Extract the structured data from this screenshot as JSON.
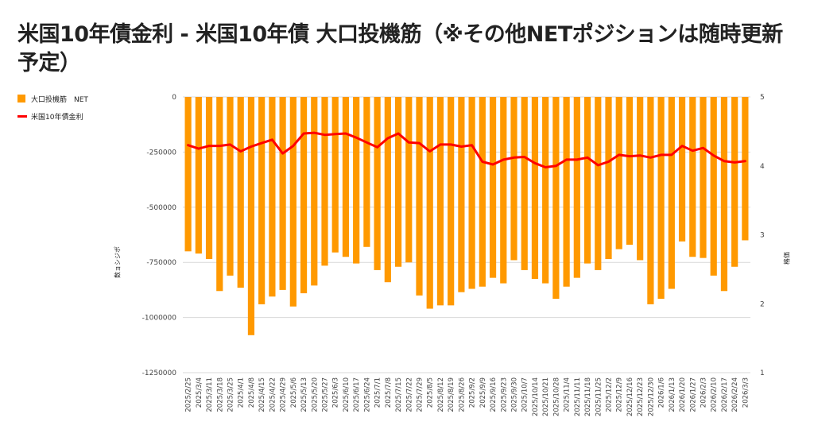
{
  "chart_data": {
    "type": "bar",
    "title": "米国10年債金利 - 米国10年債 大口投機筋（※その他NETポジションは随時更新予定）",
    "ylabel_left": "数ョシジポ",
    "ylabel_right": "格価",
    "legend_position": "left",
    "ylim_left": [
      -1250000,
      0
    ],
    "yticks_left": [
      0,
      -250000,
      -500000,
      -750000,
      -1000000,
      -1250000
    ],
    "ylim_right": [
      1,
      5
    ],
    "yticks_right": [
      5,
      4,
      3,
      2,
      1
    ],
    "colors": {
      "bar": "#ff9900",
      "line": "#ff0000",
      "grid": "#d9d9d9",
      "text": "#444444"
    },
    "categories": [
      "2025/2/25",
      "2025/3/4",
      "2025/3/11",
      "2025/3/18",
      "2025/3/25",
      "2025/4/1",
      "2025/4/8",
      "2025/4/15",
      "2025/4/22",
      "2025/4/29",
      "2025/5/6",
      "2025/5/13",
      "2025/5/20",
      "2025/5/27",
      "2025/6/3",
      "2025/6/10",
      "2025/6/17",
      "2025/6/24",
      "2025/7/1",
      "2025/7/8",
      "2025/7/15",
      "2025/7/22",
      "2025/7/29",
      "2025/8/5",
      "2025/8/12",
      "2025/8/19",
      "2025/8/26",
      "2025/9/2",
      "2025/9/9",
      "2025/9/16",
      "2025/9/23",
      "2025/9/30",
      "2025/10/7",
      "2025/10/14",
      "2025/10/21",
      "2025/10/28",
      "2025/11/4",
      "2025/11/11",
      "2025/11/18",
      "2025/11/25",
      "2025/12/2",
      "2025/12/9",
      "2025/12/16",
      "2025/12/23",
      "2025/12/30",
      "2026/1/6",
      "2026/1/13",
      "2026/1/20",
      "2026/1/27",
      "2026/2/3",
      "2026/2/10",
      "2026/2/17",
      "2026/2/24",
      "2026/3/3"
    ],
    "series": [
      {
        "name": "大口投機筋　NET",
        "axis": "left",
        "type": "bar",
        "values": [
          -700000,
          -710000,
          -735000,
          -880000,
          -810000,
          -865000,
          -1080000,
          -940000,
          -905000,
          -875000,
          -950000,
          -890000,
          -855000,
          -765000,
          -705000,
          -725000,
          -755000,
          -680000,
          -785000,
          -840000,
          -770000,
          -750000,
          -900000,
          -960000,
          -945000,
          -945000,
          -885000,
          -870000,
          -860000,
          -820000,
          -845000,
          -740000,
          -785000,
          -825000,
          -845000,
          -915000,
          -860000,
          -820000,
          -755000,
          -785000,
          -735000,
          -690000,
          -670000,
          -740000,
          -940000,
          -915000,
          -870000,
          -655000,
          -725000,
          -730000,
          -810000,
          -880000,
          -770000,
          -650000
        ]
      },
      {
        "name": "米国10年債金利",
        "axis": "right",
        "type": "line",
        "values": [
          4.3,
          4.25,
          4.29,
          4.29,
          4.31,
          4.21,
          4.28,
          4.33,
          4.38,
          4.18,
          4.29,
          4.47,
          4.48,
          4.45,
          4.46,
          4.47,
          4.41,
          4.34,
          4.27,
          4.4,
          4.47,
          4.34,
          4.33,
          4.21,
          4.31,
          4.31,
          4.28,
          4.3,
          4.06,
          4.02,
          4.09,
          4.12,
          4.13,
          4.04,
          3.98,
          4.0,
          4.09,
          4.09,
          4.12,
          4.01,
          4.06,
          4.16,
          4.14,
          4.15,
          4.12,
          4.16,
          4.16,
          4.29,
          4.22,
          4.26,
          4.15,
          4.07,
          4.05,
          4.07
        ]
      }
    ]
  },
  "legend": {
    "bar_label": "大口投機筋　NET",
    "line_label": "米国10年債金利"
  }
}
